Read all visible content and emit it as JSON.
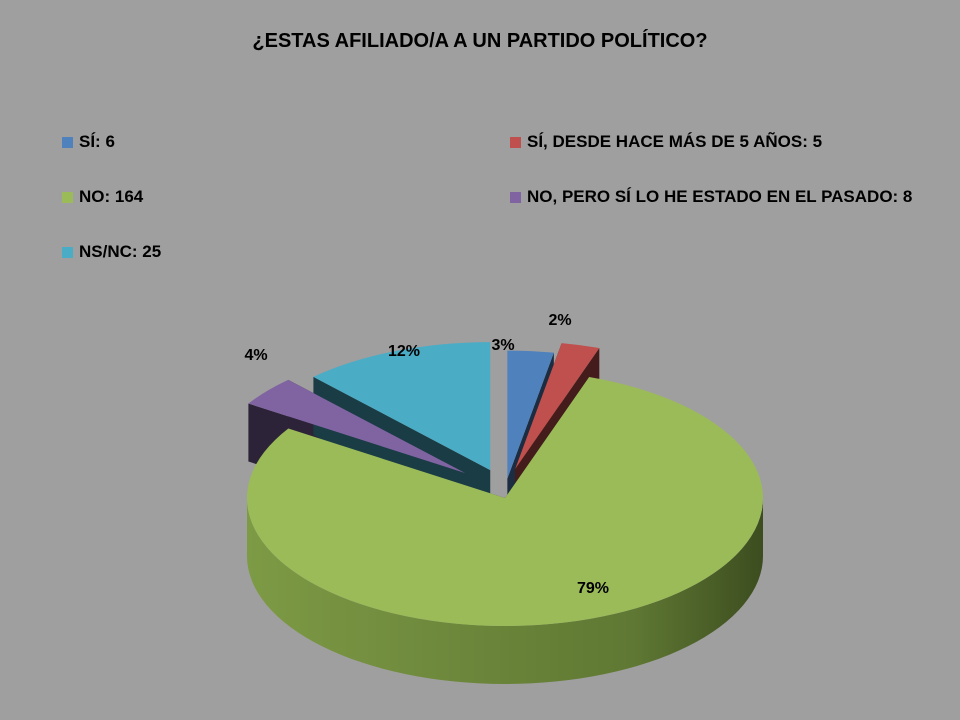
{
  "chart_data": {
    "type": "pie",
    "title": "¿ESTAS AFILIADO/A A UN PARTIDO POLÍTICO?",
    "slices": [
      {
        "label": "SÍ: 6",
        "value": 6,
        "percent_label": "3%",
        "color": "#4f81bd"
      },
      {
        "label": "SÍ, DESDE HACE MÁS DE 5 AÑOS: 5",
        "value": 5,
        "percent_label": "2%",
        "color": "#c0504d"
      },
      {
        "label": "NO: 164",
        "value": 164,
        "percent_label": "79%",
        "color": "#9bbb59"
      },
      {
        "label": "NO, PERO SÍ LO HE ESTADO EN EL PASADO: 8",
        "value": 8,
        "percent_label": "4%",
        "color": "#8064a2"
      },
      {
        "label": "NS/NC: 25",
        "value": 25,
        "percent_label": "12%",
        "color": "#4bacc6"
      }
    ],
    "style": "3d-exploded",
    "legend_position": "top"
  }
}
